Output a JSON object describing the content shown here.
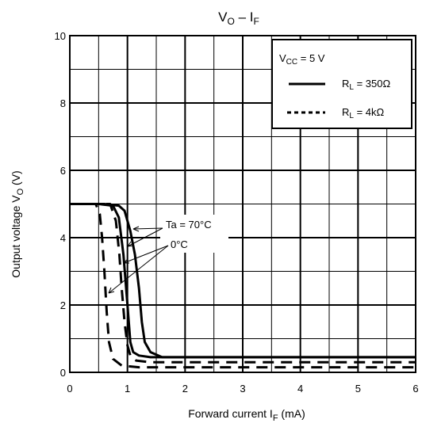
{
  "chart_data": {
    "type": "line",
    "title": {
      "main": "V",
      "sub1": "O",
      "dash": " – I",
      "sub2": "F"
    },
    "xlabel": {
      "main": "Forward current   I",
      "sub": "F",
      "unit": "   (mA)"
    },
    "ylabel": {
      "main": "Output voltage   V",
      "sub": "O",
      "unit": "   (V)"
    },
    "xlim": [
      0,
      6
    ],
    "ylim": [
      0,
      10
    ],
    "x_ticks": [
      "0",
      "1",
      "2",
      "3",
      "4",
      "5",
      "6"
    ],
    "y_ticks": [
      "0",
      "2",
      "4",
      "6",
      "8",
      "10"
    ],
    "grid": true,
    "legend": {
      "placement": "top-right",
      "condition": {
        "main": "V",
        "sub": "CC",
        "rest": " = 5 V"
      },
      "entries": [
        {
          "main": "R",
          "sub": "L",
          "rest": " = 350Ω",
          "style": "solid"
        },
        {
          "main": "R",
          "sub": "L",
          "rest": " = 4kΩ",
          "style": "dashed"
        }
      ]
    },
    "annotations": [
      {
        "text": "Ta = 70°C"
      },
      {
        "text": "0°C"
      }
    ],
    "series": [
      {
        "style": "solid",
        "x": [
          0,
          0.5,
          0.75,
          0.85,
          0.93,
          1.0,
          1.05,
          1.1,
          1.2,
          1.4,
          1.6,
          2.0,
          6.0
        ],
        "y": [
          5.0,
          5.0,
          4.95,
          4.6,
          3.5,
          2.0,
          0.9,
          0.6,
          0.5,
          0.45,
          0.45,
          0.45,
          0.45
        ]
      },
      {
        "style": "solid",
        "x": [
          0,
          0.6,
          0.85,
          0.95,
          1.05,
          1.13,
          1.2,
          1.25,
          1.3,
          1.4,
          1.6,
          2.0,
          6.0
        ],
        "y": [
          5.0,
          5.0,
          4.95,
          4.8,
          4.2,
          3.5,
          2.5,
          1.5,
          0.9,
          0.6,
          0.45,
          0.45,
          0.45
        ]
      },
      {
        "style": "dashed",
        "x": [
          0,
          0.45,
          0.52,
          0.56,
          0.6,
          0.64,
          0.68,
          0.75,
          0.9,
          1.2,
          6.0
        ],
        "y": [
          5.0,
          5.0,
          4.7,
          4.0,
          3.0,
          1.8,
          0.9,
          0.4,
          0.2,
          0.15,
          0.15
        ]
      },
      {
        "style": "dashed",
        "x": [
          0,
          0.7,
          0.8,
          0.86,
          0.9,
          0.95,
          1.0,
          1.05,
          1.15,
          1.4,
          2.0,
          6.0
        ],
        "y": [
          5.0,
          5.0,
          4.5,
          3.5,
          2.5,
          1.5,
          0.8,
          0.5,
          0.35,
          0.3,
          0.3,
          0.3
        ]
      }
    ]
  }
}
